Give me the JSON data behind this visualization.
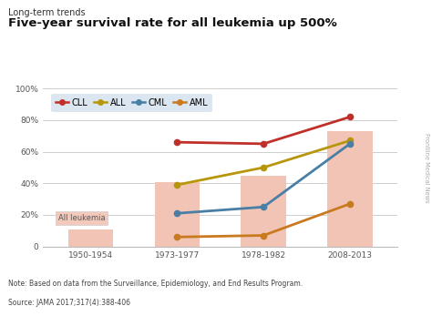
{
  "title_small": "Long-term trends",
  "title_large": "Five-year survival rate for all leukemia up 500%",
  "note": "Note: Based on data from the Surveillance, Epidemiology, and End Results Program.",
  "source": "Source: JAMA 2017;317(4):388-406",
  "x_labels": [
    "1950-1954",
    "1973-1977",
    "1978-1982",
    "2008-2013"
  ],
  "x_positions": [
    0,
    1,
    2,
    3
  ],
  "bar_values": [
    11,
    41,
    45,
    73
  ],
  "bar_color": "#f2c4b5",
  "all_leukemia_label": "All leukemia",
  "series": {
    "CLL": {
      "values": [
        null,
        66,
        65,
        82
      ],
      "color": "#c0302a",
      "marker": "o",
      "linewidth": 2.0
    },
    "ALL": {
      "values": [
        null,
        39,
        50,
        67
      ],
      "color": "#b8960c",
      "marker": "o",
      "linewidth": 2.0
    },
    "CML": {
      "values": [
        null,
        21,
        25,
        65
      ],
      "color": "#4a7fa5",
      "marker": "o",
      "linewidth": 2.0
    },
    "AML": {
      "values": [
        null,
        6,
        7,
        27
      ],
      "color": "#c97a1e",
      "marker": "o",
      "linewidth": 2.0
    }
  },
  "ylim": [
    0,
    100
  ],
  "yticks": [
    0,
    20,
    40,
    60,
    80,
    100
  ],
  "ytick_labels": [
    "0",
    "20%",
    "40%",
    "60%",
    "80%",
    "100%"
  ],
  "legend_bg": "#d9e4f0",
  "background_color": "#ffffff",
  "plot_bg": "#ffffff",
  "sidebar_text": "Frontline Medical News",
  "sidebar_color": "#aaaaaa"
}
